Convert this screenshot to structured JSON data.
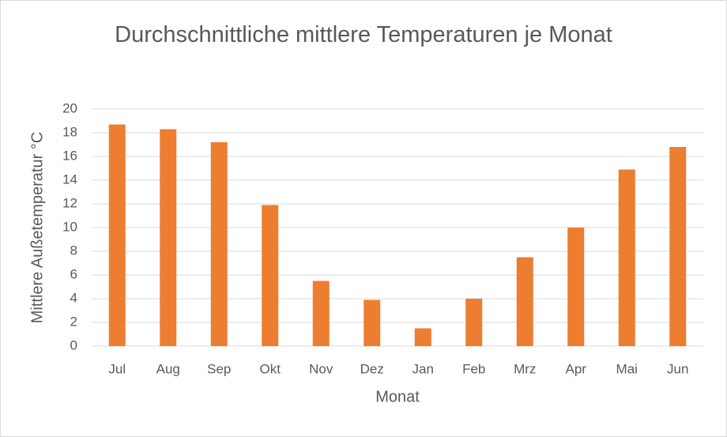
{
  "chart_data": {
    "type": "bar",
    "title": "Durchschnittliche mittlere Temperaturen je Monat",
    "x_label": "Monat",
    "y_label": "Mittlere Außetemperatur °C",
    "categories": [
      "Jul",
      "Aug",
      "Sep",
      "Okt",
      "Nov",
      "Dez",
      "Jan",
      "Feb",
      "Mrz",
      "Apr",
      "Mai",
      "Jun"
    ],
    "values": [
      18.7,
      18.3,
      17.2,
      11.9,
      5.5,
      3.9,
      1.5,
      4.0,
      7.5,
      10.0,
      14.9,
      16.8
    ],
    "color": "#ed7d31",
    "ylim": [
      0,
      20
    ],
    "yticks": [
      0,
      2,
      4,
      6,
      8,
      10,
      12,
      14,
      16,
      18,
      20
    ],
    "grid": true
  }
}
